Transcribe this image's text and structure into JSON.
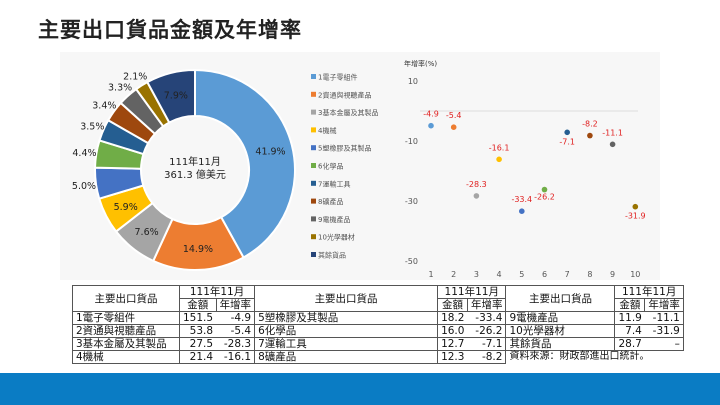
{
  "title": "主要出口貨品金額及年增率",
  "chart_data": [
    {
      "type": "pie",
      "donut": true,
      "center_label": [
        "111年11月",
        "361.3 億美元"
      ],
      "legend_position": "right",
      "categories": [
        "1電子零組件",
        "2資通與視聽產品",
        "3基本金屬及其製品",
        "4機械",
        "5塑橡膠及其製品",
        "6化學品",
        "7運輸工具",
        "8礦產品",
        "9電機產品",
        "10光學器材",
        "其餘貨品"
      ],
      "values": [
        41.9,
        14.9,
        7.6,
        5.9,
        5.0,
        4.4,
        3.5,
        3.4,
        3.3,
        2.1,
        7.9
      ],
      "labels": [
        "41.9%",
        "14.9%",
        "7.6%",
        "5.9%",
        "5.0%",
        "4.4%",
        "3.5%",
        "3.4%",
        "3.3%",
        "2.1%",
        "7.9%"
      ],
      "colors": [
        "#5B9BD5",
        "#ED7D31",
        "#A5A5A5",
        "#FFC000",
        "#4472C4",
        "#70AD47",
        "#255E91",
        "#9E480E",
        "#636363",
        "#997300",
        "#264478"
      ]
    },
    {
      "type": "scatter",
      "ylabel": "年增率(%)",
      "ylim": [
        -50,
        10
      ],
      "yticks": [
        "10",
        "-10",
        "-30",
        "-50"
      ],
      "xticks": [
        "1",
        "2",
        "3",
        "4",
        "5",
        "6",
        "7",
        "8",
        "9",
        "10"
      ],
      "x": [
        1,
        2,
        3,
        4,
        5,
        6,
        7,
        8,
        9,
        10
      ],
      "y": [
        -4.9,
        -5.4,
        -28.3,
        -16.1,
        -33.4,
        -26.2,
        -7.1,
        -8.2,
        -11.1,
        -31.9
      ],
      "labels": [
        "-4.9",
        "-5.4",
        "-28.3",
        "-16.1",
        "-33.4",
        "-26.2",
        "-7.1",
        "-8.2",
        "-11.1",
        "-31.9"
      ],
      "label_color": "#e02020"
    }
  ],
  "table": {
    "col_header": "主要出口貨品",
    "period": "111年11月",
    "amount": "金額",
    "growth": "年增率",
    "groups": [
      [
        [
          "1電子零組件",
          "151.5",
          "-4.9"
        ],
        [
          "2資通與視聽產品",
          "53.8",
          "-5.4"
        ],
        [
          "3基本金屬及其製品",
          "27.5",
          "-28.3"
        ],
        [
          "4機械",
          "21.4",
          "-16.1"
        ]
      ],
      [
        [
          "5塑橡膠及其製品",
          "18.2",
          "-33.4"
        ],
        [
          "6化學品",
          "16.0",
          "-26.2"
        ],
        [
          "7運輸工具",
          "12.7",
          "-7.1"
        ],
        [
          "8礦產品",
          "12.3",
          "-8.2"
        ]
      ],
      [
        [
          "9電機產品",
          "11.9",
          "-11.1"
        ],
        [
          "10光學器材",
          "7.4",
          "-31.9"
        ],
        [
          "其餘貨品",
          "28.7",
          "–"
        ]
      ]
    ],
    "source": "資料來源：財政部進出口統計。"
  }
}
